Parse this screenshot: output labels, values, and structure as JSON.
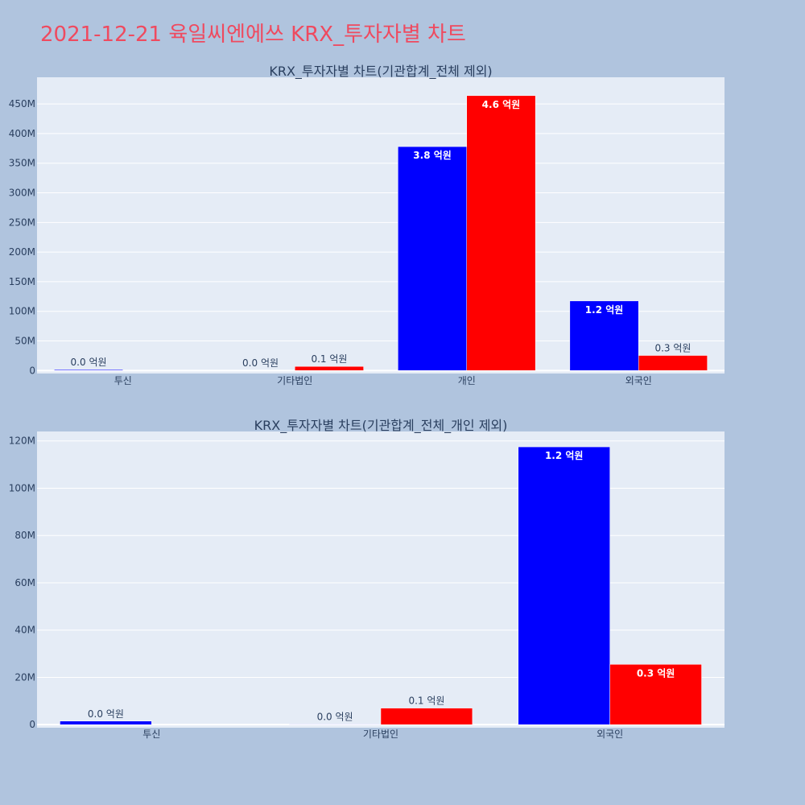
{
  "page_title": "2021-12-21 육일씨엔에쓰 KRX_투자자별 차트",
  "colors": {
    "background": "#b0c4de",
    "plot_bg": "#e5ecf6",
    "title": "#ef4a5f",
    "series1": "#0000ff",
    "series2": "#ff0000",
    "text": "#2a3f5f"
  },
  "chart_data": [
    {
      "type": "bar",
      "title": "KRX_투자자별 차트(기관합계_전체 제외)",
      "categories": [
        "투신",
        "기타법인",
        "개인",
        "외국인"
      ],
      "ylim": [
        -5000000,
        495000000
      ],
      "yticks": [
        0,
        50000000,
        100000000,
        150000000,
        200000000,
        250000000,
        300000000,
        350000000,
        400000000,
        450000000
      ],
      "ytick_labels": [
        "0",
        "50M",
        "100M",
        "150M",
        "200M",
        "250M",
        "300M",
        "350M",
        "400M",
        "450M"
      ],
      "grid": true,
      "series": [
        {
          "color": "#0000ff",
          "values": [
            1500000,
            200000,
            378000000,
            117500000
          ],
          "labels": [
            "0.0 억원",
            "0.0 억원",
            "3.8 억원",
            "1.2 억원"
          ]
        },
        {
          "color": "#ff0000",
          "values": [
            0,
            7000000,
            464000000,
            25500000
          ],
          "labels": [
            "",
            "0.1 억원",
            "4.6 억원",
            "0.3 억원"
          ]
        }
      ]
    },
    {
      "type": "bar",
      "title": "KRX_투자자별 차트(기관합계_전체_개인 제외)",
      "categories": [
        "투신",
        "기타법인",
        "외국인"
      ],
      "ylim": [
        -1300000,
        124000000
      ],
      "yticks": [
        0,
        20000000,
        40000000,
        60000000,
        80000000,
        100000000,
        120000000
      ],
      "ytick_labels": [
        "0",
        "20M",
        "40M",
        "60M",
        "80M",
        "100M",
        "120M"
      ],
      "grid": true,
      "series": [
        {
          "color": "#0000ff",
          "values": [
            1500000,
            200000,
            117500000
          ],
          "labels": [
            "0.0 억원",
            "0.0 억원",
            "1.2 억원"
          ]
        },
        {
          "color": "#ff0000",
          "values": [
            0,
            7000000,
            25500000
          ],
          "labels": [
            "",
            "0.1 억원",
            "0.3 억원"
          ]
        }
      ]
    }
  ]
}
